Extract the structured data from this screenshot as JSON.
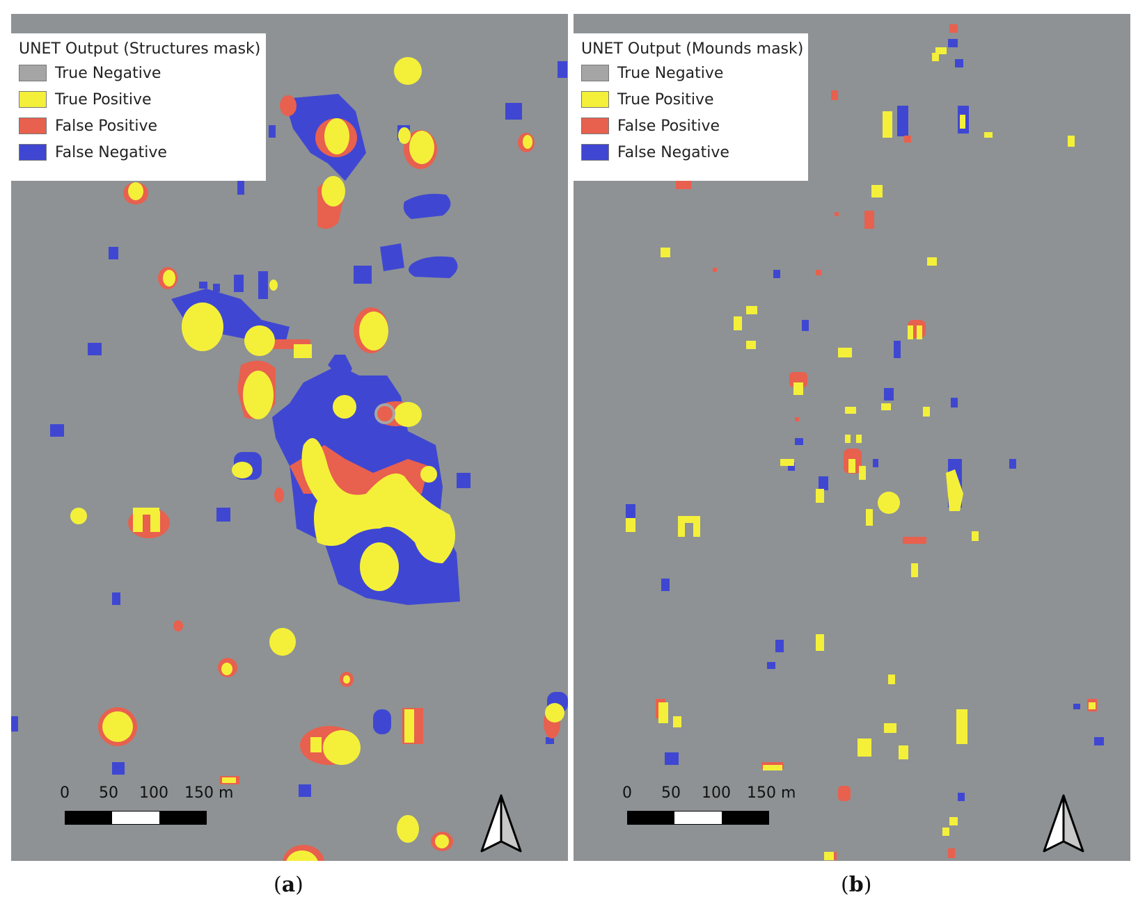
{
  "colors": {
    "background": "#8e9294",
    "true_negative": "#a5a5a5",
    "true_positive": "#f4f03a",
    "false_positive": "#e8604e",
    "false_negative": "#3f47d2"
  },
  "panels": [
    {
      "id": "a",
      "legend": {
        "title": "UNET Output (Structures mask)",
        "items": [
          {
            "label": "True Negative",
            "color": "#a5a5a5"
          },
          {
            "label": "True Positive",
            "color": "#f4f03a"
          },
          {
            "label": "False Positive",
            "color": "#e8604e"
          },
          {
            "label": "False Negative",
            "color": "#3f47d2"
          }
        ]
      },
      "scale": {
        "ticks": [
          "0",
          "50",
          "100",
          "150 m"
        ]
      },
      "caption": "a"
    },
    {
      "id": "b",
      "legend": {
        "title": "UNET Output (Mounds mask)",
        "items": [
          {
            "label": "True Negative",
            "color": "#a5a5a5"
          },
          {
            "label": "True Positive",
            "color": "#f4f03a"
          },
          {
            "label": "False Positive",
            "color": "#e8604e"
          },
          {
            "label": "False Negative",
            "color": "#3f47d2"
          }
        ]
      },
      "scale": {
        "ticks": [
          "0",
          "50",
          "100",
          "150 m"
        ]
      },
      "caption": "b"
    }
  ]
}
